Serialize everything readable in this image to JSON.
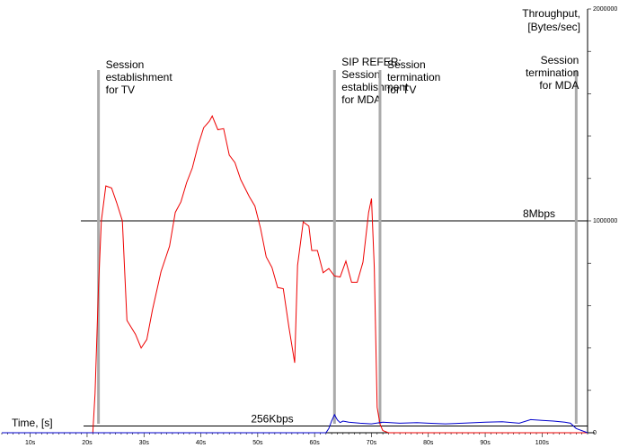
{
  "chart_data": {
    "type": "line",
    "xlabel": "Time, [s]",
    "ylabel": "Throughput, [Bytes/sec]",
    "xlim": [
      5,
      108
    ],
    "ylim": [
      0,
      2000000
    ],
    "x_ticks": [
      "10s",
      "20s",
      "30s",
      "40s",
      "50s",
      "60s",
      "70s",
      "80s",
      "90s",
      "100s"
    ],
    "x_tick_values": [
      10,
      20,
      30,
      40,
      50,
      60,
      70,
      80,
      90,
      100
    ],
    "y_ticks": [
      "0",
      "1000000",
      "2000000"
    ],
    "y_tick_values": [
      0,
      1000000,
      2000000
    ],
    "y_minor_step": 200000,
    "reference_lines": [
      {
        "label": "8Mbps",
        "value": 1000000
      },
      {
        "label": "256Kbps",
        "value": 32000
      }
    ],
    "events": [
      {
        "label": "Session establishment for TV",
        "lines": [
          "Session",
          "establishment",
          "for TV"
        ],
        "x": 22
      },
      {
        "label": "SIP REFER: Session establishment for MDA",
        "lines": [
          "SIP REFER:",
          "Session",
          "establishment",
          "for MDA"
        ],
        "x": 63.5
      },
      {
        "label": "Session termination for TV",
        "lines": [
          "Session",
          "termination",
          "for TV"
        ],
        "x": 71.5
      },
      {
        "label": "Session termination for MDA",
        "lines": [
          "Session",
          "termination",
          "for MDA"
        ],
        "x": 106
      }
    ],
    "series": [
      {
        "color": "#ee0000",
        "x": [
          5,
          21,
          21.4,
          22,
          22.5,
          23.3,
          24.3,
          25.2,
          26.2,
          27,
          28.5,
          29.5,
          30.5,
          31.5,
          33,
          34.5,
          35.5,
          36.5,
          37.5,
          38.5,
          39.5,
          40.5,
          41.5,
          42,
          43,
          44,
          45,
          46,
          47,
          48.5,
          49.5,
          50.5,
          51.5,
          52.5,
          53.5,
          54.5,
          55.5,
          56.5,
          57,
          58,
          59,
          59.5,
          60.5,
          61.5,
          62.5,
          63.5,
          64.5,
          65.5,
          66.5,
          67.5,
          68.5,
          69.5,
          70,
          70.5,
          71,
          71.5,
          72,
          73,
          108
        ],
        "values": [
          0,
          0,
          185000,
          685000,
          1000000,
          1165000,
          1155000,
          1085000,
          1000000,
          530000,
          465000,
          400000,
          440000,
          580000,
          760000,
          880000,
          1040000,
          1090000,
          1180000,
          1250000,
          1355000,
          1440000,
          1470000,
          1495000,
          1430000,
          1435000,
          1310000,
          1275000,
          1195000,
          1115000,
          1070000,
          965000,
          830000,
          780000,
          685000,
          680000,
          495000,
          330000,
          790000,
          995000,
          975000,
          860000,
          860000,
          755000,
          775000,
          740000,
          735000,
          810000,
          710000,
          710000,
          805000,
          1040000,
          1105000,
          780000,
          120000,
          40000,
          10000,
          0,
          0
        ]
      },
      {
        "color": "#0000cc",
        "x": [
          5,
          62,
          62.5,
          63,
          63.5,
          64,
          64.5,
          65,
          66,
          68,
          70,
          72,
          75,
          78,
          80,
          83,
          86,
          90,
          93,
          96,
          98,
          100,
          102,
          104,
          105,
          106,
          108
        ],
        "values": [
          0,
          0,
          20000,
          55000,
          85000,
          60000,
          48000,
          55000,
          50000,
          45000,
          42000,
          50000,
          45000,
          48000,
          45000,
          42000,
          45000,
          50000,
          52000,
          45000,
          62000,
          58000,
          55000,
          50000,
          45000,
          20000,
          0
        ]
      }
    ]
  }
}
